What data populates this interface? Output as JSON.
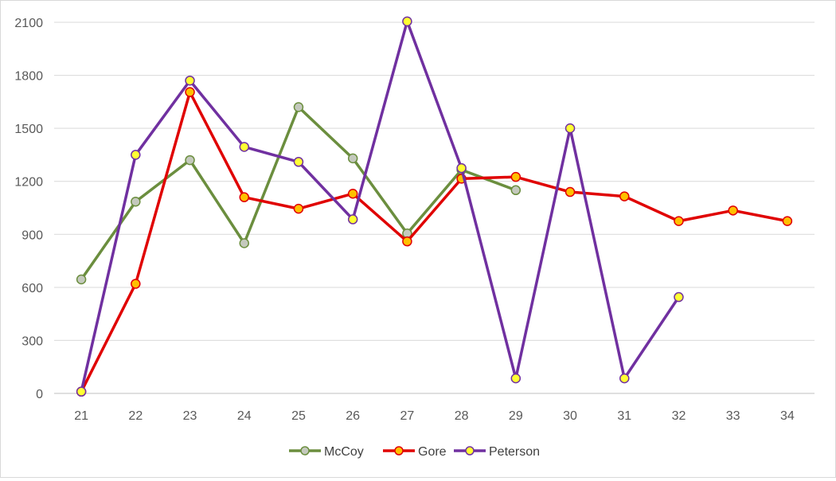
{
  "chart_data": {
    "type": "line",
    "title": "",
    "xlabel": "",
    "ylabel": "",
    "x": [
      "21",
      "22",
      "23",
      "24",
      "25",
      "26",
      "27",
      "28",
      "29",
      "30",
      "31",
      "32",
      "33",
      "34"
    ],
    "ylim": [
      0,
      2100
    ],
    "yticks": [
      0,
      300,
      600,
      900,
      1200,
      1500,
      1800,
      2100
    ],
    "grid": true,
    "legend_position": "bottom",
    "series": [
      {
        "name": "McCoy",
        "color": "#6b8e3e",
        "marker_fill": "#c4c9bd",
        "values": [
          645,
          1085,
          1320,
          850,
          1620,
          1330,
          905,
          1265,
          1150,
          null,
          null,
          null,
          null,
          null
        ]
      },
      {
        "name": "Gore",
        "color": "#e00000",
        "marker_fill": "#ffc000",
        "values": [
          10,
          620,
          1705,
          1110,
          1045,
          1130,
          860,
          1215,
          1225,
          1140,
          1115,
          975,
          1035,
          975
        ]
      },
      {
        "name": "Peterson",
        "color": "#7030a0",
        "marker_fill": "#ffff33",
        "values": [
          10,
          1350,
          1770,
          1395,
          1310,
          985,
          2105,
          1275,
          85,
          1500,
          85,
          545,
          null,
          null
        ]
      }
    ]
  }
}
